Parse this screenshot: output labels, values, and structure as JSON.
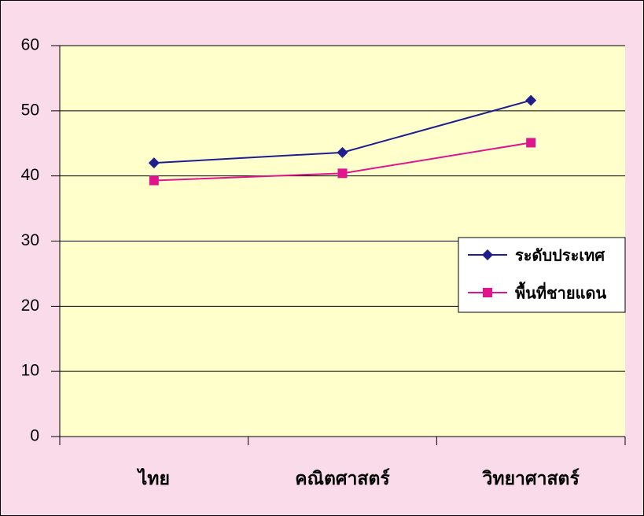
{
  "chart_data": {
    "type": "line",
    "categories": [
      "ไทย",
      "คณิตศาสตร์",
      "วิทยาศาสตร์"
    ],
    "series": [
      {
        "name": "ระดับประเทศ",
        "color": "#1e1e8c",
        "marker": "diamond",
        "values": [
          42.0,
          43.6,
          51.6
        ]
      },
      {
        "name": "พื้นที่ชายแดน",
        "color": "#e0148c",
        "marker": "square",
        "values": [
          39.3,
          40.4,
          45.1
        ]
      }
    ],
    "ylim": [
      0,
      60
    ],
    "yticks": [
      0,
      10,
      20,
      30,
      40,
      50,
      60
    ],
    "grid": true,
    "legend": "right"
  }
}
